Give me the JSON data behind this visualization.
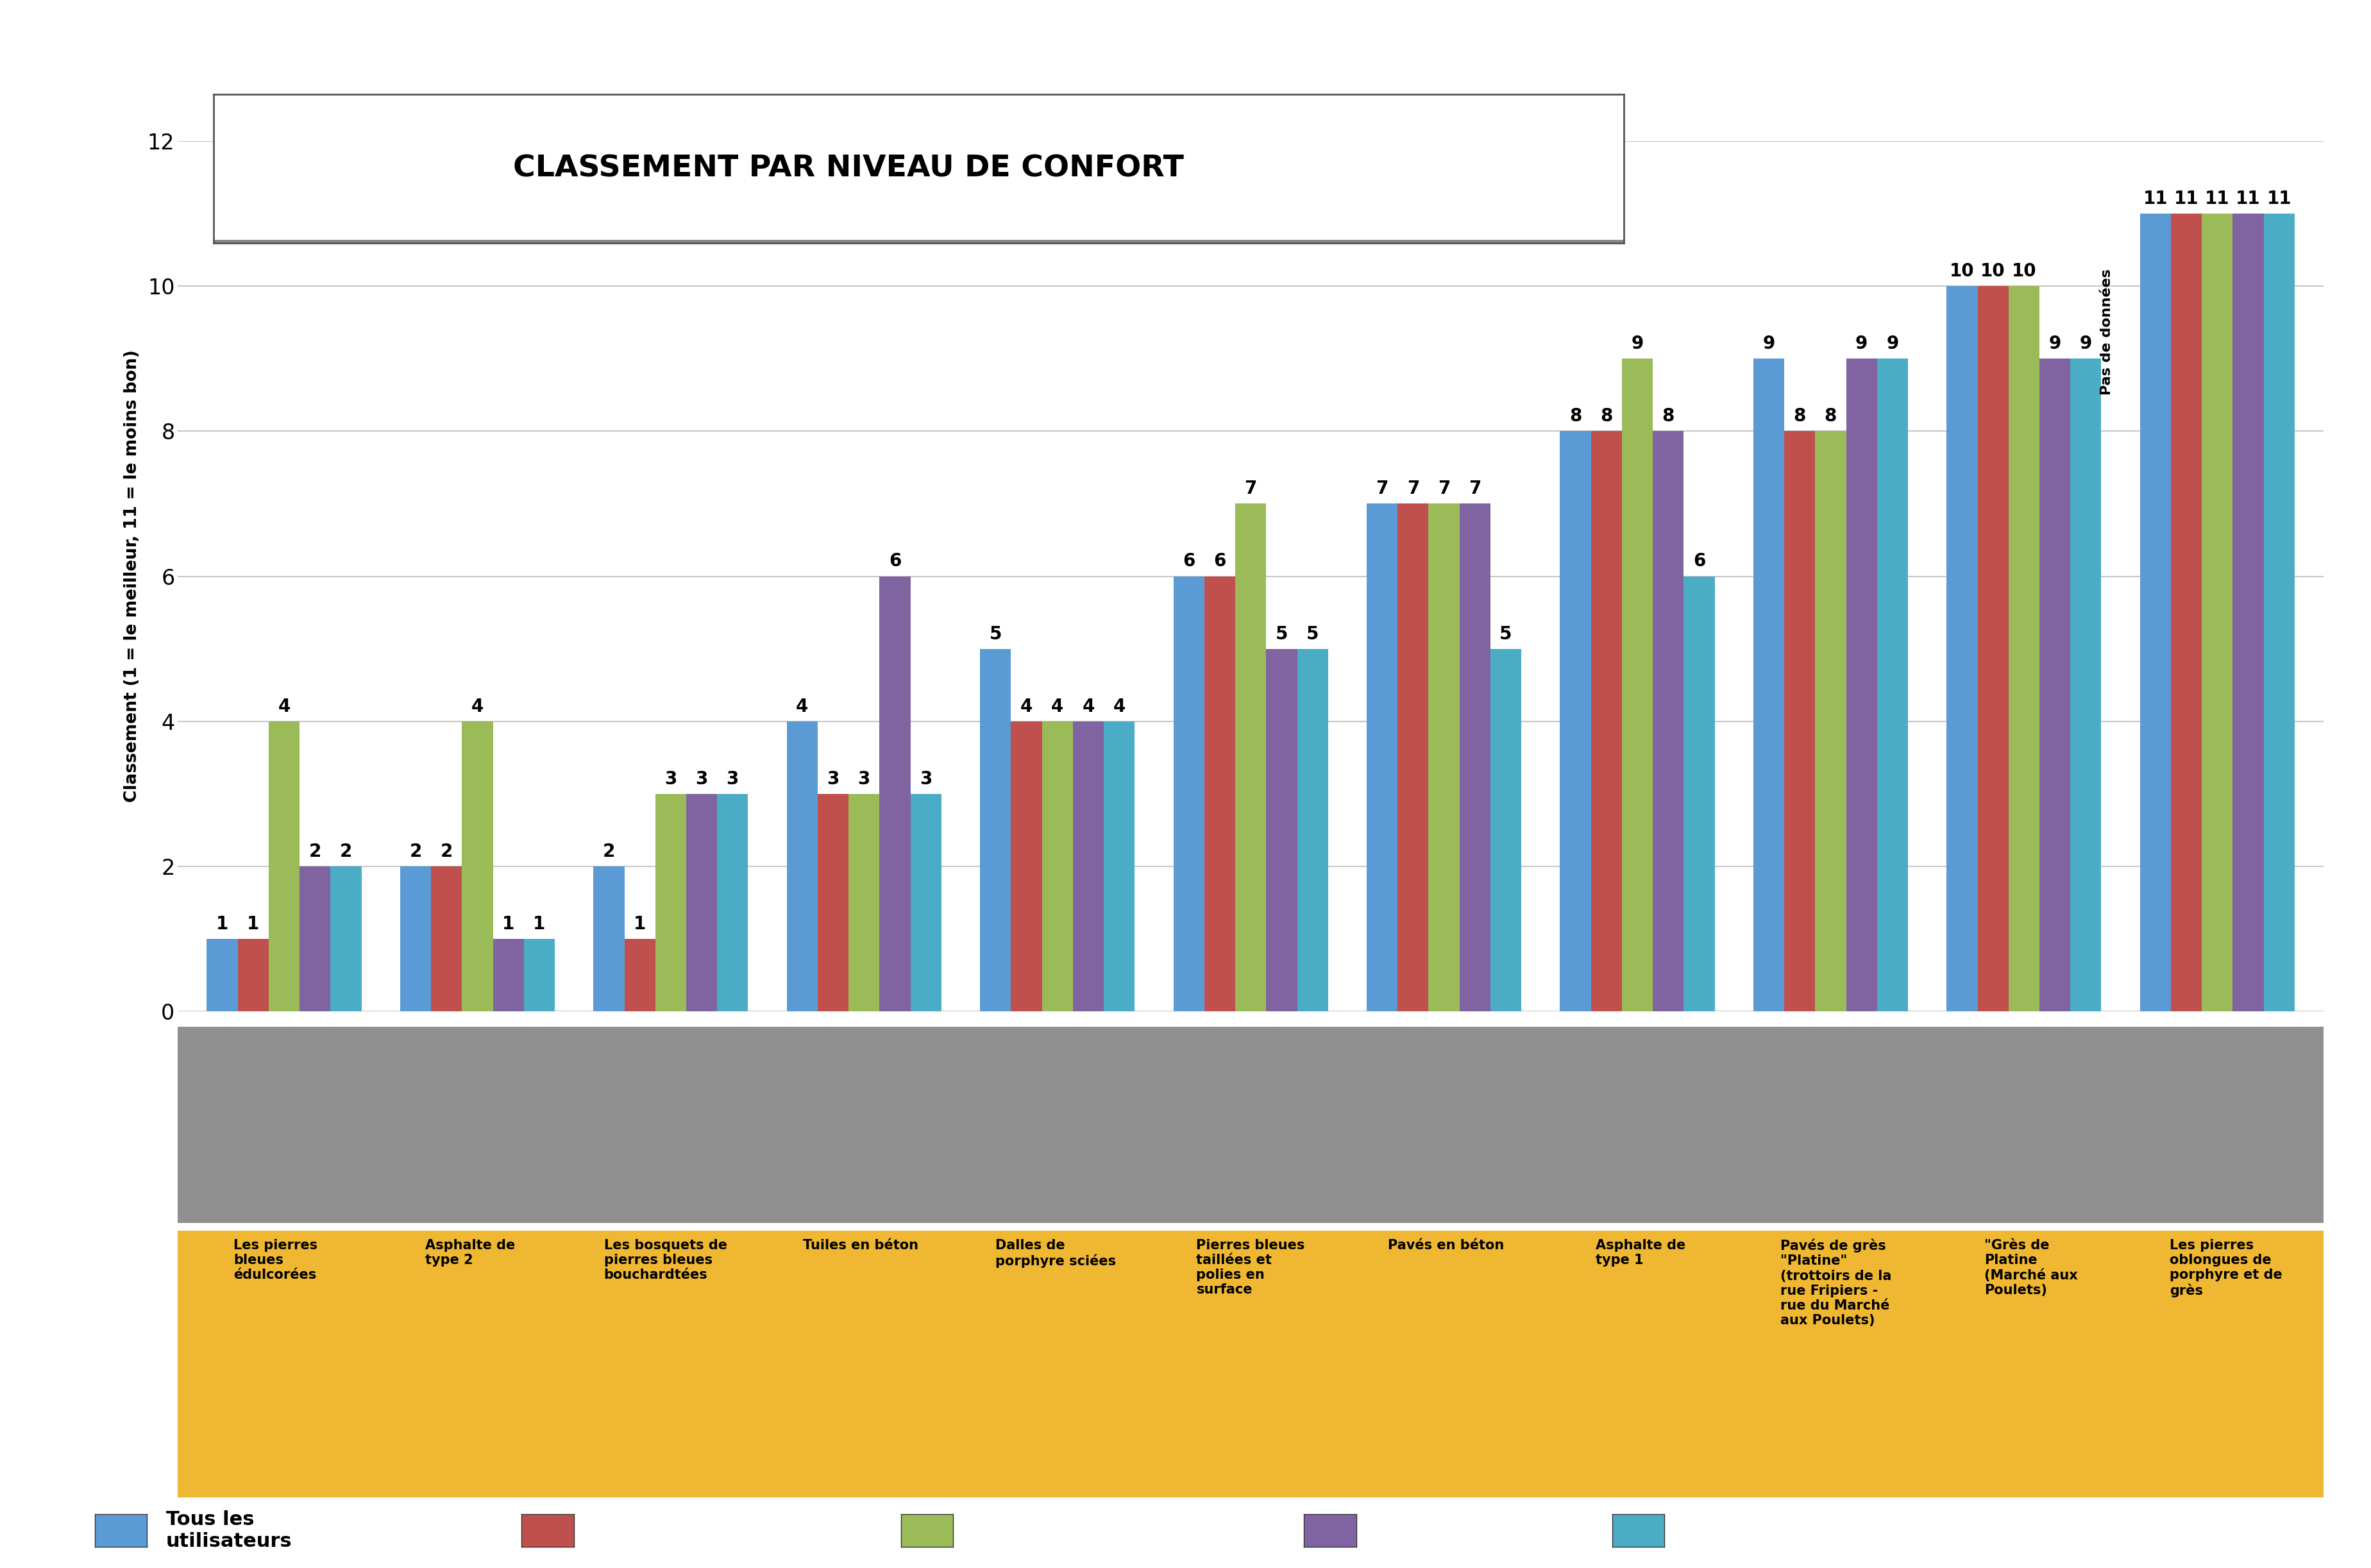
{
  "title": "CLASSEMENT PAR NIVEAU DE CONFORT",
  "ylabel": "Classement (1 = le meilleur, 11 = le moins bon)",
  "ylim": [
    0,
    12
  ],
  "yticks": [
    0,
    2,
    4,
    6,
    8,
    10,
    12
  ],
  "categories": [
    "Les pierres\nbleues\nédulcorées",
    "Asphalte de\ntype 2",
    "Les bosquets de\npierres bleues\nbouchardtées",
    "Tuiles en béton",
    "Dalles de\nporphyre sciées",
    "Pierres bleues\ntaillées et\npolies en\nsurface",
    "Pavés en béton",
    "Asphalte de\ntype 1",
    "Pavés de grès\n\"Platine\"\n(trottoirs de la\nrue Fripiers -\nrue du Marché\naux Poulets)",
    "«Grès de\nPlatine\n(Marché aux\nPoulets)",
    "Les pierres\noblongues de\nporphyre et de\ngrès"
  ],
  "values_blue": [
    1,
    2,
    2,
    4,
    5,
    6,
    7,
    8,
    9,
    10,
    11
  ],
  "values_red": [
    1,
    2,
    1,
    3,
    4,
    6,
    7,
    8,
    8,
    10,
    11
  ],
  "values_green": [
    4,
    4,
    3,
    3,
    4,
    7,
    7,
    9,
    8,
    10,
    11
  ],
  "values_purple": [
    2,
    1,
    3,
    6,
    4,
    5,
    7,
    8,
    9,
    9,
    11
  ],
  "values_cyan": [
    2,
    1,
    3,
    3,
    4,
    5,
    5,
    6,
    9,
    9,
    11
  ],
  "color_blue": "#5B9BD5",
  "color_red": "#C0504D",
  "color_green": "#9BBB59",
  "color_purple": "#8064A2",
  "color_cyan": "#4BACC6",
  "bar_width": 0.16,
  "annotation_fontsize": 20,
  "title_fontsize": 34,
  "ylabel_fontsize": 19,
  "tick_fontsize": 24,
  "label_fontsize": 15,
  "legend_fontsize": 22,
  "bg_color": "#FFFFFF",
  "grid_color": "#C8C8C8",
  "label_bg_color": "#F0B832",
  "photo_bg_color": "#909090",
  "pas_de_donnees_idx": 9,
  "legend_labels": [
    "Tous les\nutilisateurs",
    "",
    "",
    "",
    ""
  ]
}
